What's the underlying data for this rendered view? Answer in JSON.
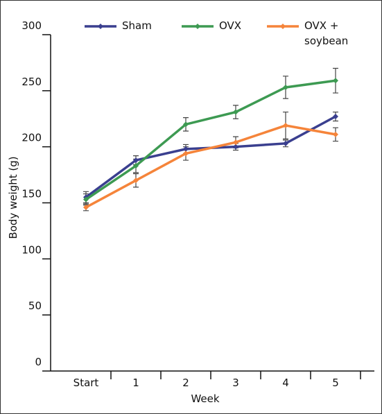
{
  "chart_data": {
    "type": "line",
    "categories": [
      "Start",
      "1",
      "2",
      "3",
      "4",
      "5"
    ],
    "x_label": "Week",
    "y_label": "Body weight (g)",
    "ylim": [
      0,
      300
    ],
    "yticks": [
      0,
      50,
      100,
      150,
      200,
      250,
      300
    ],
    "series": [
      {
        "name": "Sham",
        "color": "#3a3f8f",
        "values": [
          155,
          188,
          198,
          200,
          203,
          227
        ],
        "errors": [
          5,
          4,
          4,
          3,
          3,
          4
        ]
      },
      {
        "name": "OVX",
        "color": "#3d9a52",
        "values": [
          153,
          183,
          220,
          231,
          253,
          259
        ],
        "errors": [
          5,
          6,
          6,
          6,
          10,
          11
        ]
      },
      {
        "name": "OVX + soybean",
        "color": "#f5843a",
        "values": [
          146,
          170,
          194,
          204,
          219,
          211
        ],
        "errors": [
          3,
          6,
          6,
          5,
          12,
          6
        ]
      }
    ]
  }
}
